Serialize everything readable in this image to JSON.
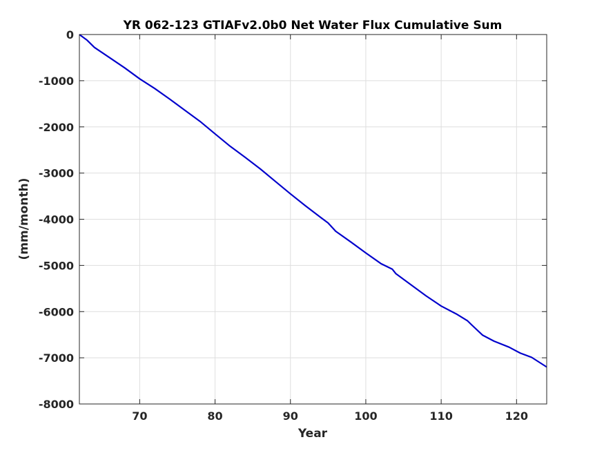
{
  "chart_data": {
    "type": "line",
    "title": "YR 062-123 GTIAFv2.0b0 Net Water Flux Cumulative Sum",
    "xlabel": "Year",
    "ylabel": "(mm/month)",
    "xlim": [
      62,
      124
    ],
    "ylim": [
      -8000,
      0
    ],
    "xticks": [
      70,
      80,
      90,
      100,
      110,
      120
    ],
    "xtick_labels": [
      "70",
      "80",
      "90",
      "100",
      "110",
      "120"
    ],
    "yticks": [
      0,
      -1000,
      -2000,
      -3000,
      -4000,
      -5000,
      -6000,
      -7000,
      -8000
    ],
    "ytick_labels": [
      "0",
      "-1000",
      "-2000",
      "-3000",
      "-4000",
      "-5000",
      "-6000",
      "-7000",
      "-8000"
    ],
    "grid": true,
    "line_color": "#0000cc",
    "series": [
      {
        "x": [
          62.0,
          63.0,
          64.0,
          66.0,
          68.0,
          70.0,
          72.0,
          74.0,
          76.0,
          78.0,
          80.0,
          82.0,
          84.0,
          86.0,
          88.0,
          90.0,
          92.0,
          94.0,
          95.0,
          96.0,
          98.0,
          100.0,
          102.0,
          103.5,
          104.0,
          106.0,
          108.0,
          110.0,
          112.0,
          113.5,
          114.0,
          115.5,
          117.0,
          119.0,
          120.5,
          122.0,
          124.0
        ],
        "y": [
          0,
          -120,
          -280,
          -500,
          -720,
          -960,
          -1170,
          -1400,
          -1640,
          -1880,
          -2150,
          -2420,
          -2660,
          -2910,
          -3180,
          -3450,
          -3710,
          -3960,
          -4080,
          -4260,
          -4490,
          -4730,
          -4960,
          -5080,
          -5180,
          -5420,
          -5660,
          -5880,
          -6050,
          -6200,
          -6280,
          -6510,
          -6640,
          -6770,
          -6900,
          -6990,
          -7200
        ]
      }
    ]
  }
}
